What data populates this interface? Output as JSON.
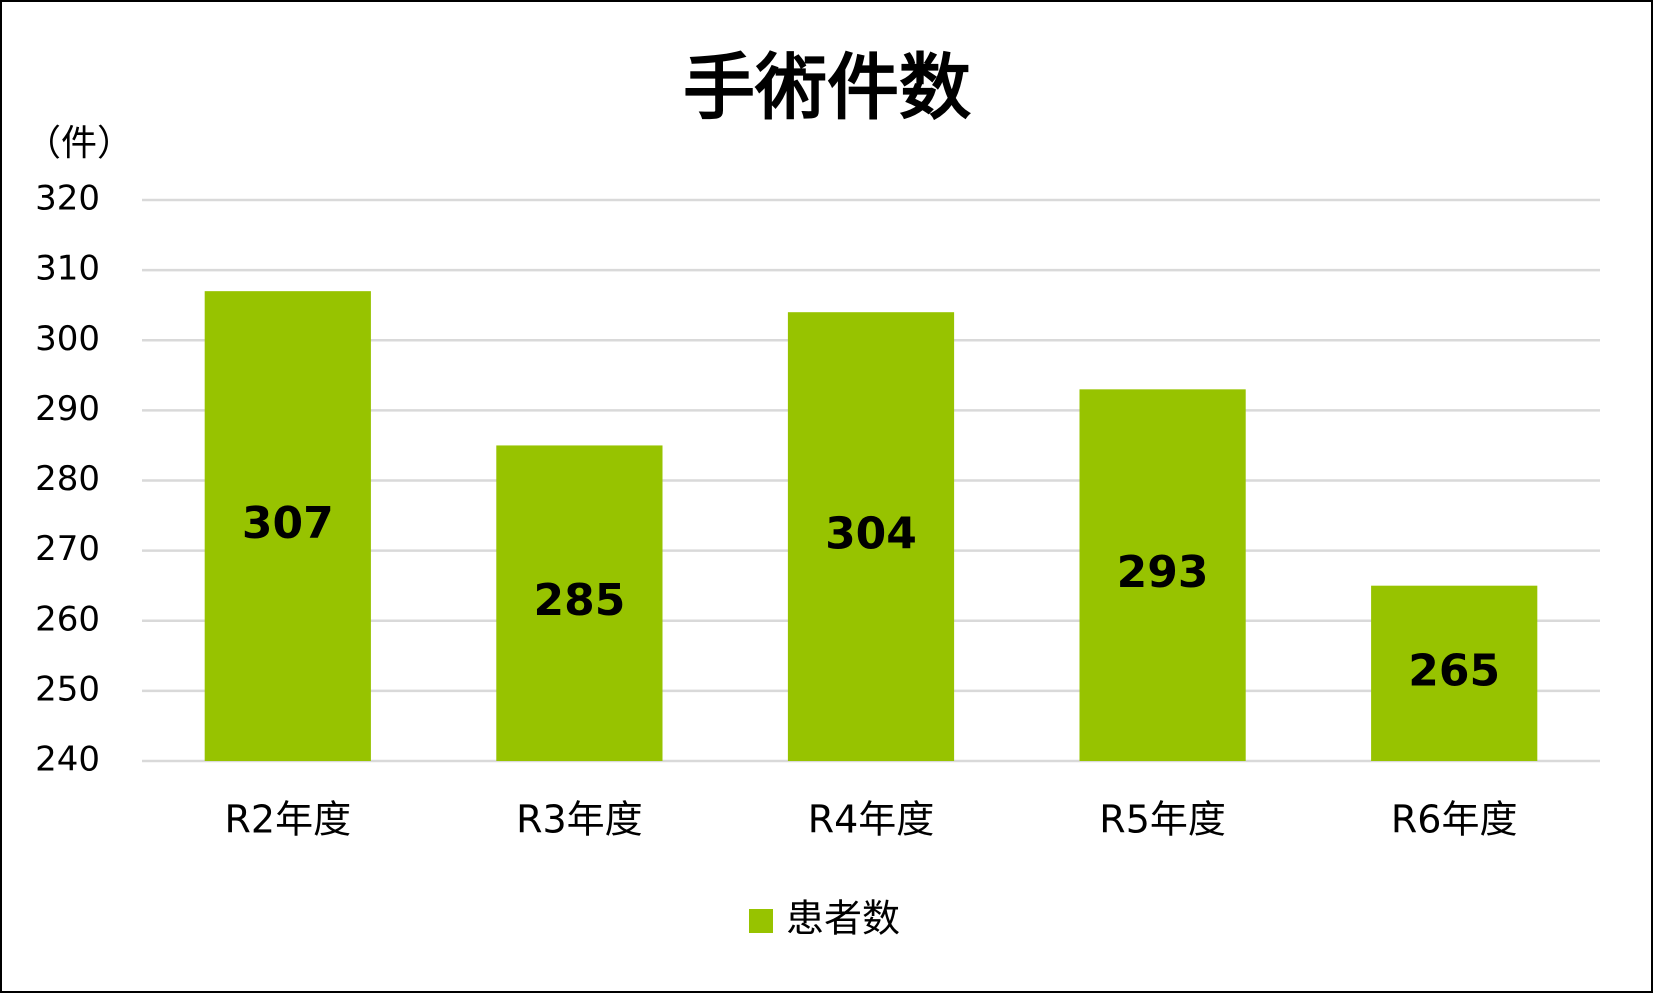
{
  "chart_data": {
    "type": "bar",
    "title": "手術件数",
    "y_label": "（件）",
    "categories": [
      "R2年度",
      "R3年度",
      "R4年度",
      "R5年度",
      "R6年度"
    ],
    "series": [
      {
        "name": "患者数",
        "color": "#97c300",
        "values": [
          307,
          285,
          304,
          293,
          265
        ]
      }
    ],
    "ylim": [
      240,
      320
    ],
    "yticks": [
      240,
      250,
      260,
      270,
      280,
      290,
      300,
      310,
      320
    ],
    "grid": true,
    "legend": "bottom",
    "data_labels": true
  }
}
